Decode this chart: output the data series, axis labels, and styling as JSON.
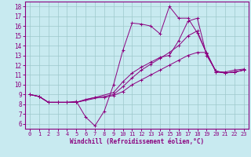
{
  "xlabel": "Windchill (Refroidissement éolien,°C)",
  "bg_color": "#c8eaf0",
  "line_color": "#8b0080",
  "grid_color": "#9dc8cc",
  "xlim": [
    -0.5,
    23.5
  ],
  "ylim": [
    5.5,
    18.5
  ],
  "xticks": [
    0,
    1,
    2,
    3,
    4,
    5,
    6,
    7,
    8,
    9,
    10,
    11,
    12,
    13,
    14,
    15,
    16,
    17,
    18,
    19,
    20,
    21,
    22,
    23
  ],
  "yticks": [
    6,
    7,
    8,
    9,
    10,
    11,
    12,
    13,
    14,
    15,
    16,
    17,
    18
  ],
  "lines": [
    {
      "x": [
        0,
        1,
        2,
        3,
        4,
        5,
        6,
        7,
        8,
        9,
        10,
        11,
        12,
        13,
        14,
        15,
        16,
        17,
        18,
        19,
        20,
        21,
        22,
        23
      ],
      "y": [
        9.0,
        8.8,
        8.2,
        8.2,
        8.2,
        8.3,
        6.7,
        5.8,
        7.3,
        10.0,
        13.5,
        16.3,
        16.2,
        16.0,
        15.2,
        18.0,
        16.8,
        16.8,
        15.3,
        13.2,
        11.3,
        11.3,
        11.5,
        11.6
      ]
    },
    {
      "x": [
        0,
        1,
        2,
        3,
        4,
        5,
        9,
        10,
        11,
        12,
        13,
        14,
        15,
        16,
        17,
        18,
        19,
        20,
        21,
        22,
        23
      ],
      "y": [
        9.0,
        8.8,
        8.2,
        8.2,
        8.2,
        8.2,
        9.0,
        9.8,
        10.7,
        11.5,
        12.1,
        12.7,
        13.3,
        14.0,
        15.0,
        15.5,
        13.2,
        11.4,
        11.2,
        11.3,
        11.5
      ]
    },
    {
      "x": [
        0,
        1,
        2,
        3,
        4,
        5,
        9,
        10,
        11,
        12,
        13,
        14,
        15,
        16,
        17,
        18,
        19,
        20,
        21,
        22,
        23
      ],
      "y": [
        9.0,
        8.8,
        8.2,
        8.2,
        8.2,
        8.2,
        9.2,
        10.3,
        11.2,
        11.8,
        12.3,
        12.8,
        13.0,
        14.5,
        16.5,
        16.8,
        13.0,
        11.4,
        11.2,
        11.3,
        11.5
      ]
    },
    {
      "x": [
        0,
        1,
        2,
        3,
        4,
        5,
        6,
        7,
        8,
        9,
        10,
        11,
        12,
        13,
        14,
        15,
        16,
        17,
        18,
        19,
        20,
        21,
        22,
        23
      ],
      "y": [
        9.0,
        8.8,
        8.2,
        8.2,
        8.2,
        8.2,
        8.5,
        8.7,
        8.7,
        8.9,
        9.3,
        10.0,
        10.5,
        11.0,
        11.5,
        12.0,
        12.5,
        13.0,
        13.3,
        13.3,
        11.3,
        11.2,
        11.3,
        11.5
      ]
    }
  ]
}
